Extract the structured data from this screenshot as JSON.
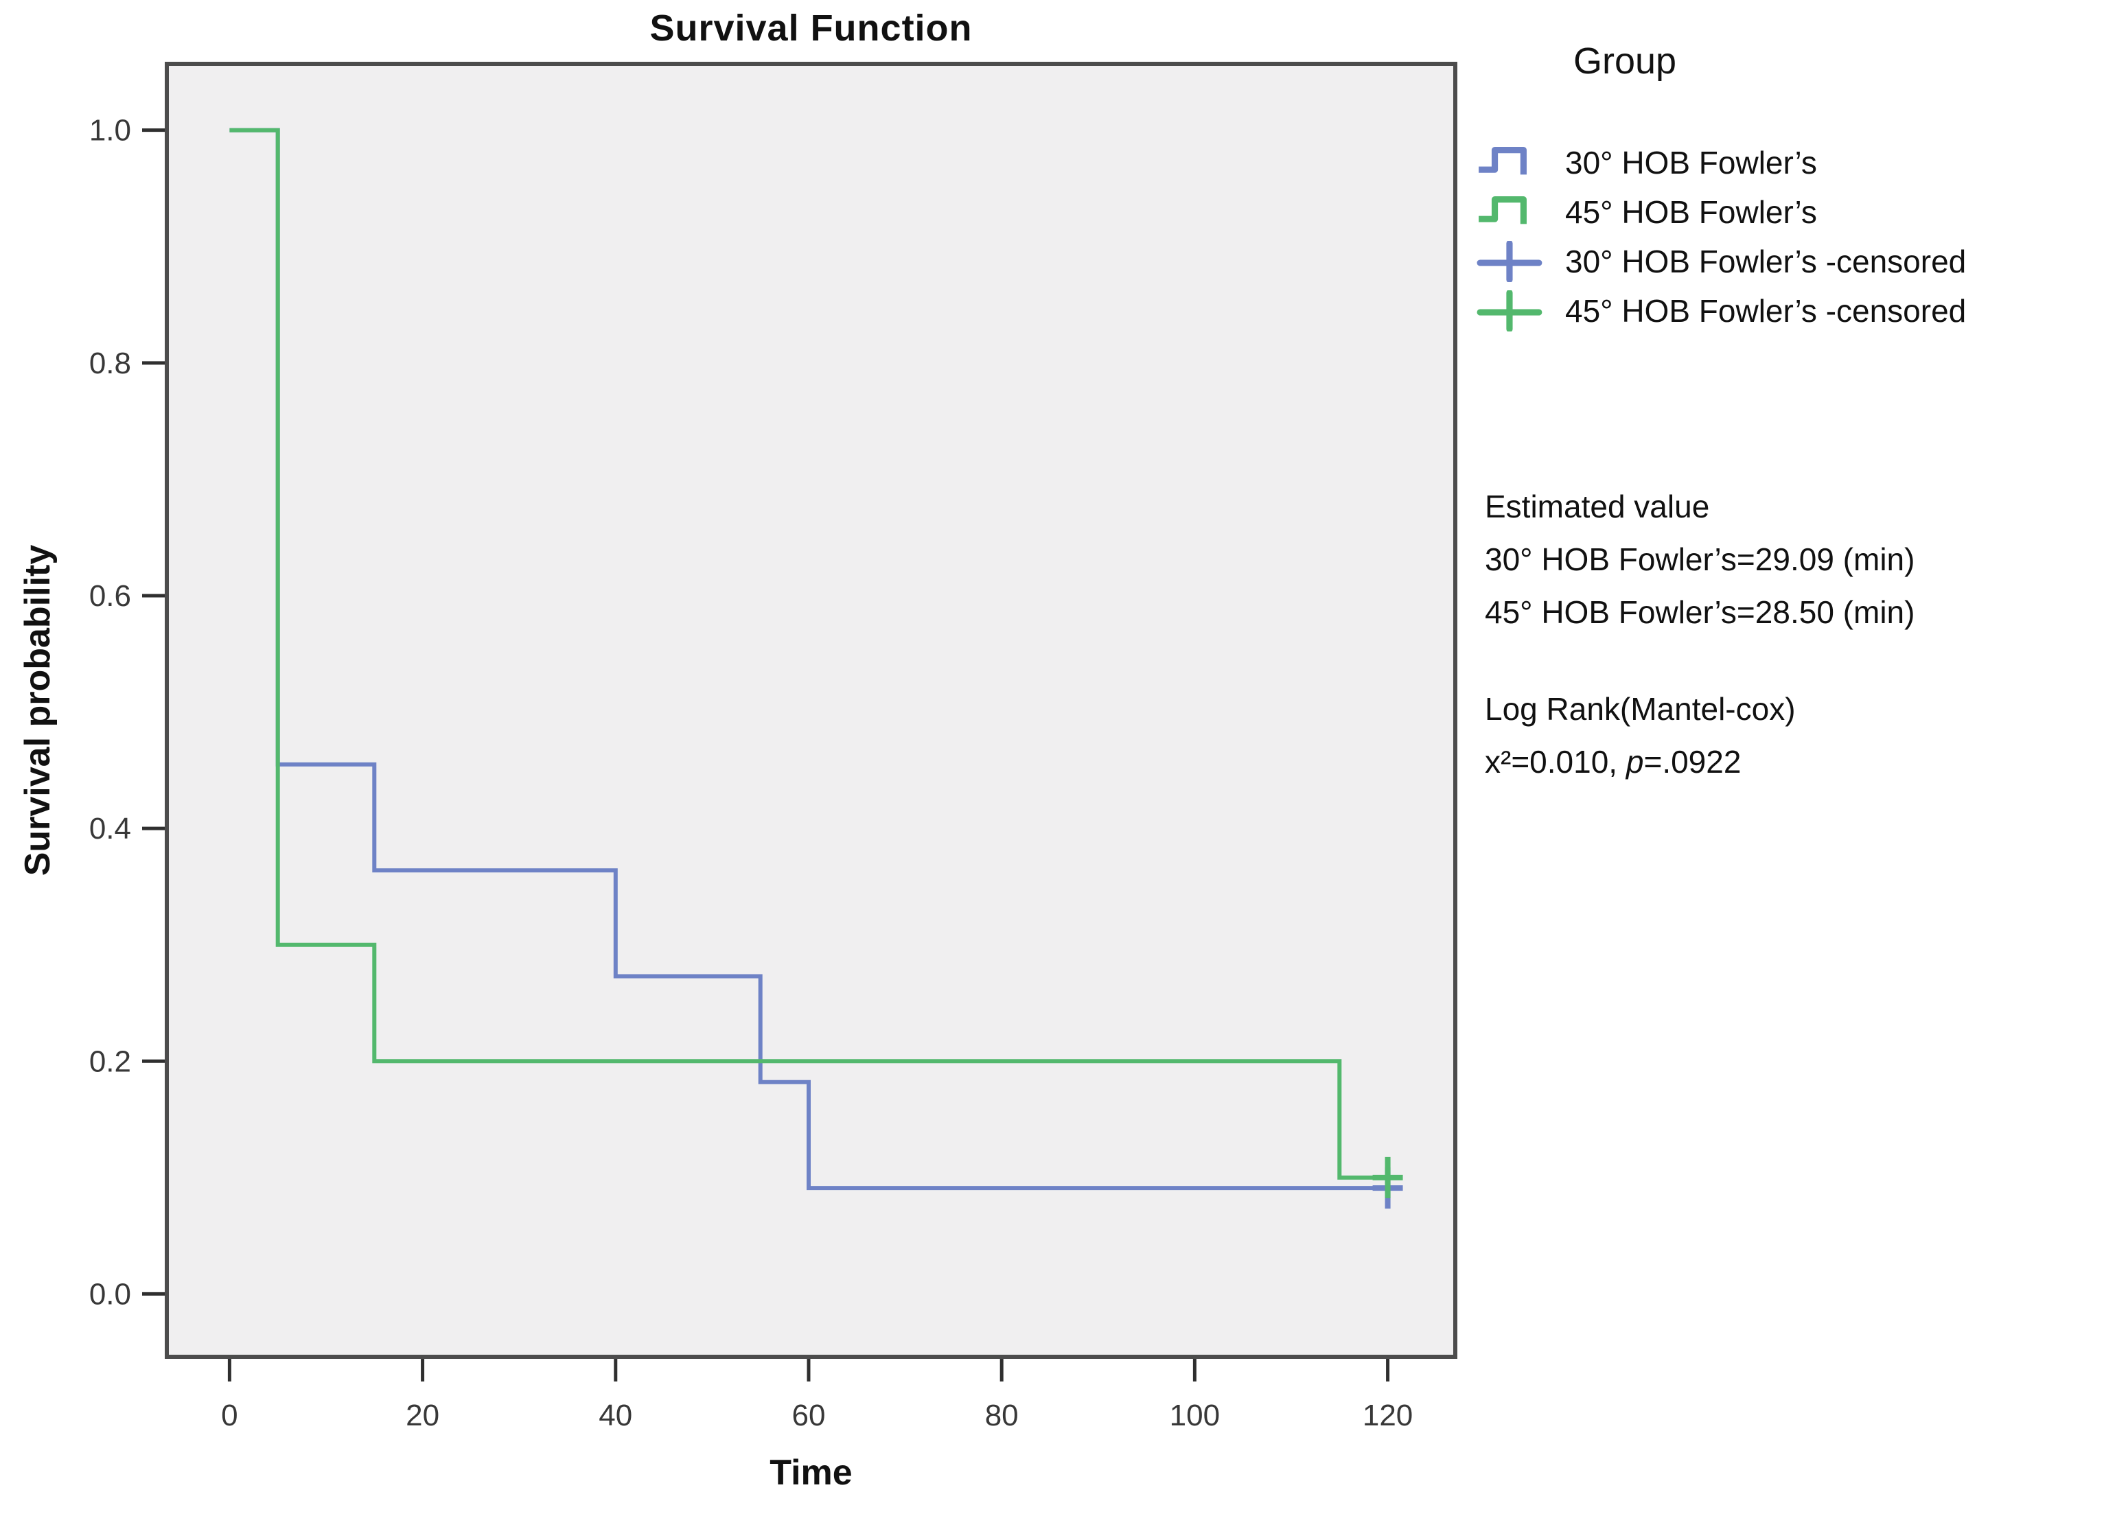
{
  "figure": {
    "title": "Survival Function",
    "x_axis_label": "Time",
    "y_axis_label": "Survival probability"
  },
  "legend": {
    "title": "Group",
    "items": [
      {
        "label": "30° HOB Fowler’s",
        "marker": "step-line",
        "color": "#6e82c6"
      },
      {
        "label": "45° HOB Fowler’s",
        "marker": "step-line",
        "color": "#53b86d"
      },
      {
        "label": "30° HOB Fowler’s -censored",
        "marker": "plus",
        "color": "#6e82c6"
      },
      {
        "label": "45° HOB Fowler’s -censored",
        "marker": "plus",
        "color": "#53b86d"
      }
    ]
  },
  "stats_annotation": {
    "estimated_header": "Estimated value",
    "estimated_line_30": "30° HOB Fowler’s=29.09 (min)",
    "estimated_line_45": "45° HOB Fowler’s=28.50 (min)",
    "logrank_header": "Log Rank(Mantel-cox)",
    "logrank_chi": "x²=0.010, ",
    "logrank_p_symbol": "p",
    "logrank_p_value": "=.0922"
  },
  "chart_data": {
    "type": "line",
    "subtype": "kaplan-meier-step",
    "title": "Survival Function",
    "xlabel": "Time",
    "ylabel": "Survival probability",
    "xlim": [
      -6.5,
      127
    ],
    "ylim": [
      -0.054,
      1.057
    ],
    "x_ticks": [
      0,
      20,
      40,
      60,
      80,
      100,
      120
    ],
    "y_ticks": [
      1.0,
      0.8,
      0.6,
      0.4,
      0.2,
      0.0
    ],
    "y_tick_labels": [
      "1.0",
      "0.8",
      "0.6",
      "0.4",
      "0.2",
      "0.0"
    ],
    "grid": false,
    "legend_position": "outside-top-right",
    "plot_bg": "#f0eff0",
    "frame_color": "#4c4c4c",
    "tick_color": "#2f2f2f",
    "tick_label_color": "#383838",
    "series": [
      {
        "name": "30° HOB Fowler’s",
        "color": "#6e82c6",
        "steps": [
          [
            0,
            1.0
          ],
          [
            5,
            1.0
          ],
          [
            5,
            0.455
          ],
          [
            15,
            0.455
          ],
          [
            15,
            0.364
          ],
          [
            40,
            0.364
          ],
          [
            40,
            0.273
          ],
          [
            55,
            0.273
          ],
          [
            55,
            0.182
          ],
          [
            60,
            0.182
          ],
          [
            60,
            0.091
          ],
          [
            120.8,
            0.091
          ]
        ],
        "censored": [
          [
            120,
            0.091
          ]
        ]
      },
      {
        "name": "45° HOB Fowler’s",
        "color": "#53b86d",
        "steps": [
          [
            0,
            1.0
          ],
          [
            5,
            1.0
          ],
          [
            5,
            0.3
          ],
          [
            15,
            0.3
          ],
          [
            15,
            0.2
          ],
          [
            115,
            0.2
          ],
          [
            115,
            0.1
          ],
          [
            120.8,
            0.1
          ]
        ],
        "censored": [
          [
            120,
            0.1
          ]
        ]
      }
    ],
    "annotations": {
      "estimated_value_30_min": 29.09,
      "estimated_value_45_min": 28.5,
      "logrank_chi_square": 0.01,
      "logrank_p": 0.0922
    }
  }
}
